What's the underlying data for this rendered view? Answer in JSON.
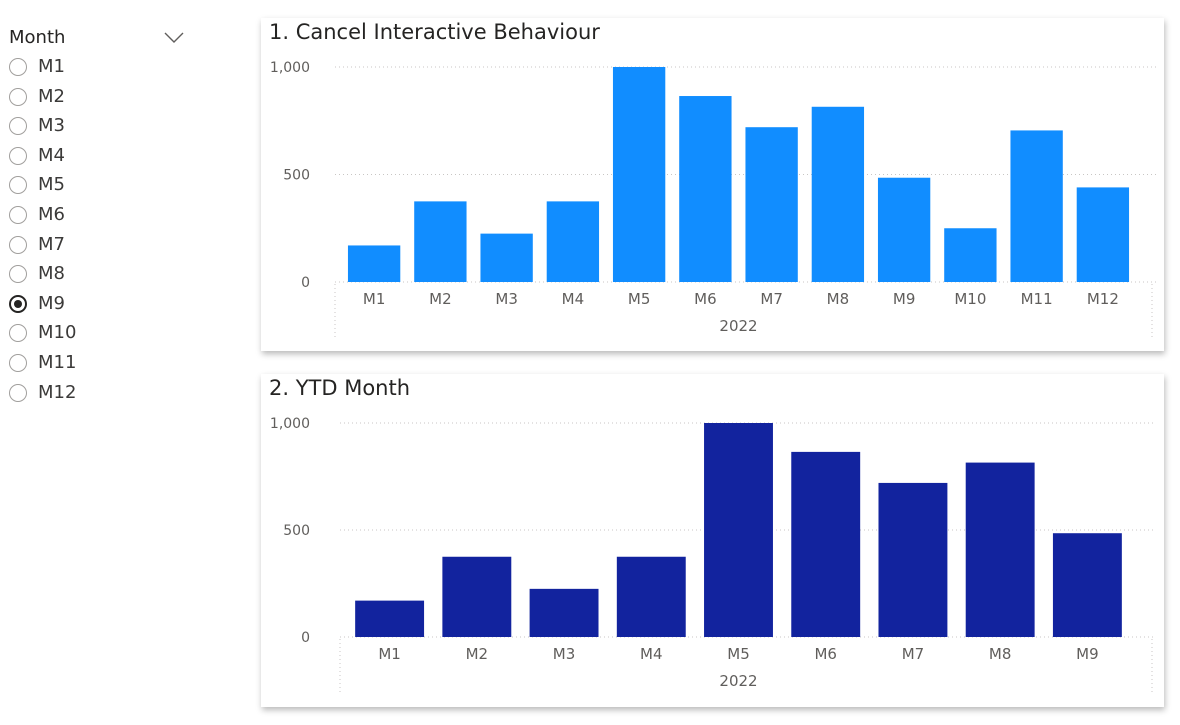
{
  "slicer": {
    "title": "Month",
    "chevron_icon": "chevron-down-icon",
    "selected": "M9",
    "items": [
      "M1",
      "M2",
      "M3",
      "M4",
      "M5",
      "M6",
      "M7",
      "M8",
      "M9",
      "M10",
      "M11",
      "M12"
    ]
  },
  "chart_data": [
    {
      "type": "bar",
      "title": "1. Cancel Interactive Behaviour",
      "categories": [
        "M1",
        "M2",
        "M3",
        "M4",
        "M5",
        "M6",
        "M7",
        "M8",
        "M9",
        "M10",
        "M11",
        "M12"
      ],
      "values": [
        170,
        375,
        225,
        375,
        1000,
        865,
        720,
        815,
        485,
        250,
        705,
        440
      ],
      "x_group_label": "2022",
      "yticks": [
        "0",
        "500",
        "1,000"
      ],
      "ylim": [
        0,
        1000
      ],
      "grid": true,
      "color": "#118DFF"
    },
    {
      "type": "bar",
      "title": "2. YTD Month",
      "categories": [
        "M1",
        "M2",
        "M3",
        "M4",
        "M5",
        "M6",
        "M7",
        "M8",
        "M9"
      ],
      "values": [
        170,
        375,
        225,
        375,
        1000,
        865,
        720,
        815,
        485
      ],
      "x_group_label": "2022",
      "yticks": [
        "0",
        "500",
        "1,000"
      ],
      "ylim": [
        0,
        1000
      ],
      "grid": true,
      "color": "#12239E"
    }
  ]
}
